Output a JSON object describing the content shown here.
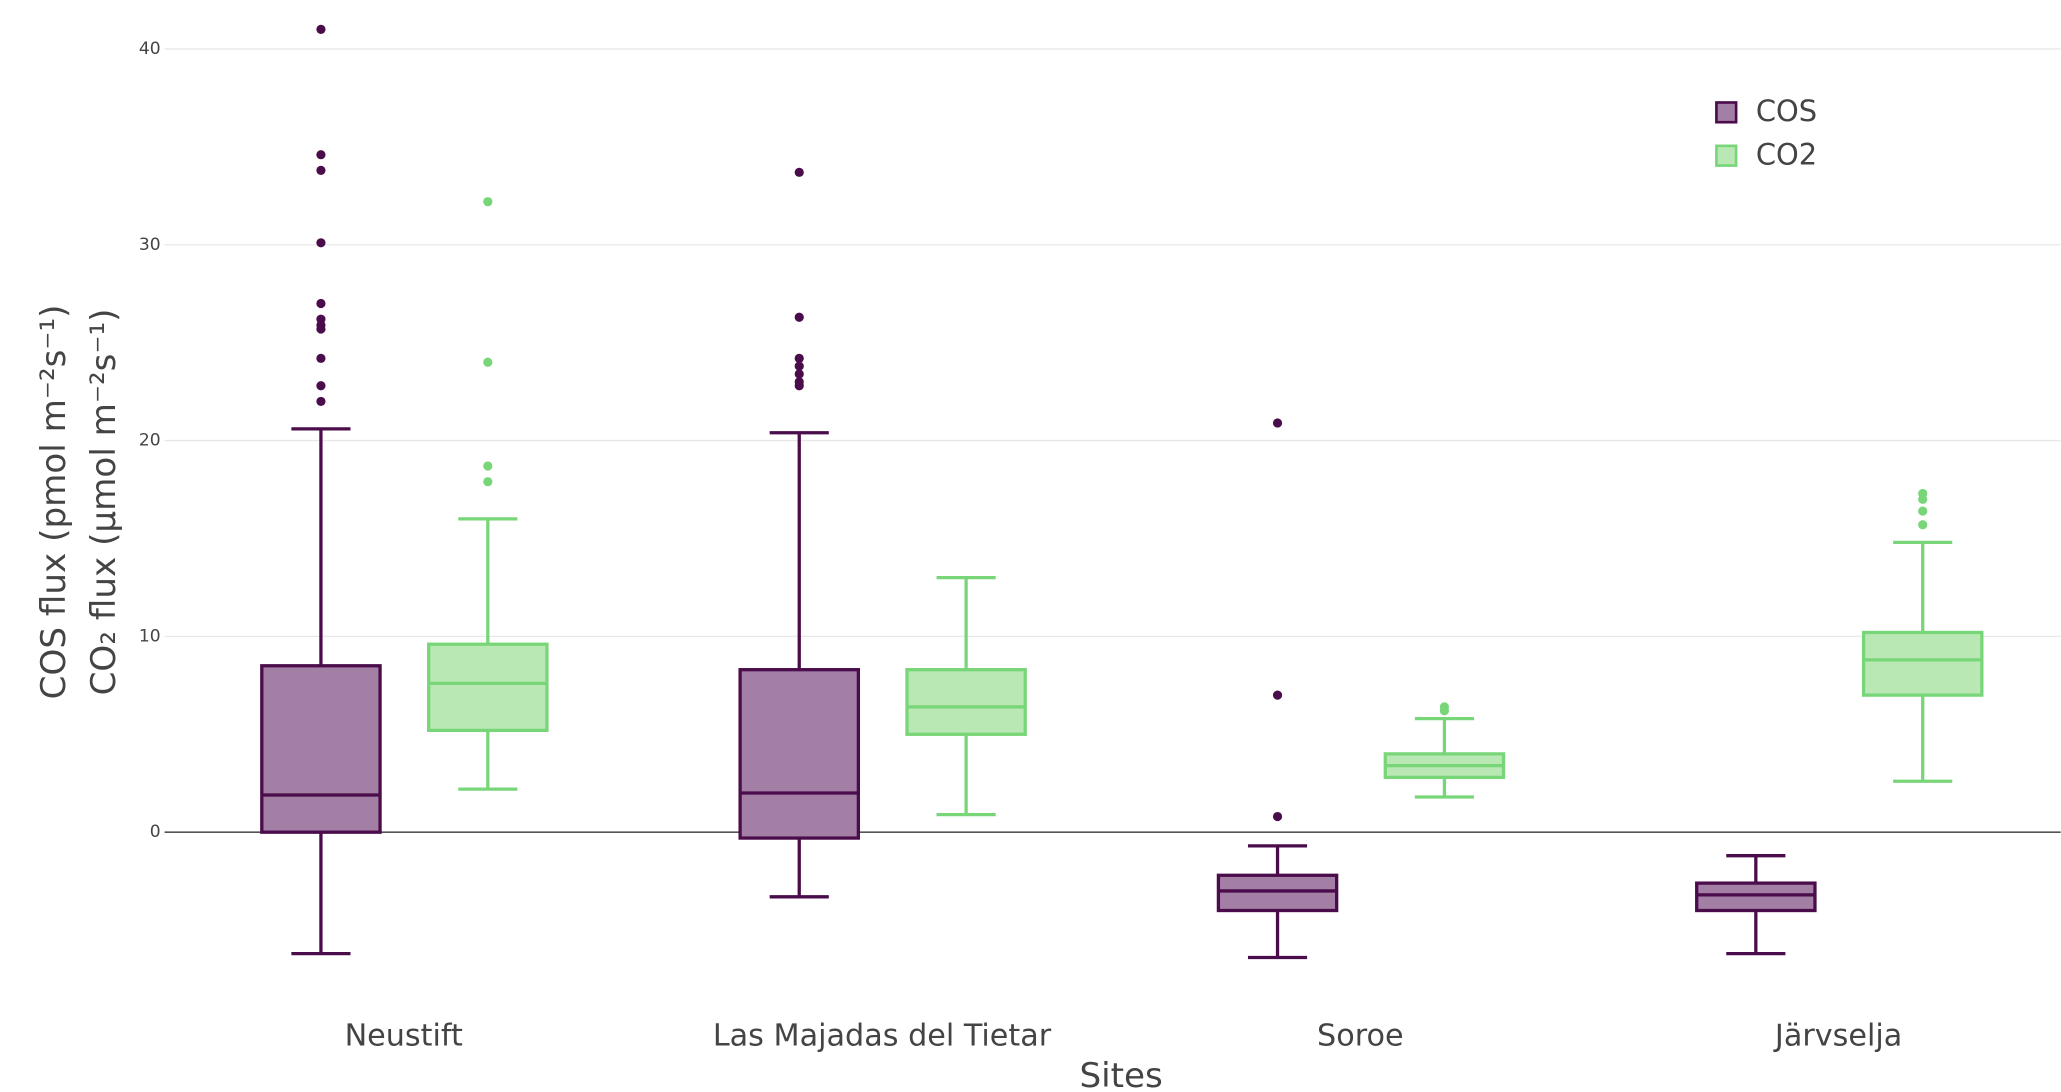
{
  "chart_data": {
    "type": "box",
    "categories": [
      "Neustift",
      "Las Majadas del Tietar",
      "Soroe",
      "Järvselja"
    ],
    "x_label": "Sites",
    "y_label_lines": [
      "COS flux (pmol m⁻²s⁻¹)",
      "CO₂ flux (µmol m⁻²s⁻¹)"
    ],
    "ylim": [
      -8.5,
      42.5
    ],
    "yticks": [
      0,
      10,
      20,
      30,
      40
    ],
    "grid": true,
    "legend": "top-right",
    "series": [
      {
        "name": "COS",
        "color": "#4a0c4a",
        "fill": "#a37ea5",
        "boxes": [
          {
            "low": -6.2,
            "q1": 0,
            "median": 1.9,
            "q3": 8.5,
            "high": 20.6,
            "outliers": [
              41.0,
              34.6,
              33.8,
              30.1,
              27.0,
              26.2,
              25.9,
              25.7,
              24.2,
              22.8,
              22.0
            ]
          },
          {
            "low": -3.3,
            "q1": -0.3,
            "median": 2.0,
            "q3": 8.3,
            "high": 20.4,
            "outliers": [
              33.7,
              26.3,
              24.2,
              23.8,
              23.4,
              23.0,
              22.8
            ]
          },
          {
            "low": -6.4,
            "q1": -4.0,
            "median": -3.0,
            "q3": -2.2,
            "high": -0.7,
            "outliers": [
              20.9,
              7.0,
              0.8
            ]
          },
          {
            "low": -6.2,
            "q1": -4.0,
            "median": -3.2,
            "q3": -2.6,
            "high": -1.2,
            "outliers": []
          }
        ]
      },
      {
        "name": "CO2",
        "color": "#78d678",
        "fill": "#b9e8b4",
        "boxes": [
          {
            "low": 2.2,
            "q1": 5.2,
            "median": 7.6,
            "q3": 9.6,
            "high": 16.0,
            "outliers": [
              32.2,
              24.0,
              18.7,
              17.9
            ]
          },
          {
            "low": 0.9,
            "q1": 5.0,
            "median": 6.4,
            "q3": 8.3,
            "high": 13.0,
            "outliers": []
          },
          {
            "low": 1.8,
            "q1": 2.8,
            "median": 3.4,
            "q3": 4.0,
            "high": 5.8,
            "outliers": [
              6.4,
              6.2
            ]
          },
          {
            "low": 2.6,
            "q1": 7.0,
            "median": 8.8,
            "q3": 10.2,
            "high": 14.8,
            "outliers": [
              17.3,
              17.0,
              16.4,
              15.7
            ]
          }
        ]
      }
    ]
  }
}
